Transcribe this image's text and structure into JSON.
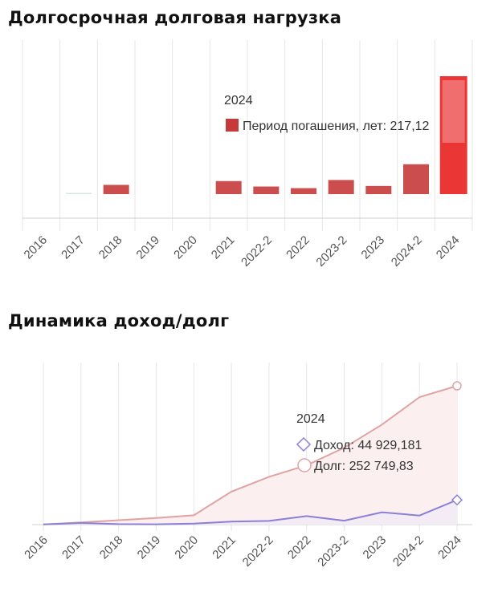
{
  "sections": {
    "debt_load_title": "Долгосрочная долговая нагрузка",
    "income_debt_title": "Динамика доход/долг"
  },
  "colors": {
    "bar": "#c73a3a",
    "bar_highlight": "#e8211f",
    "income_line": "#8b7fd6",
    "debt_line": "#e0a3a3",
    "debt_fill": "#fbeff0",
    "grid": "#e6e6e6"
  },
  "chart_data": [
    {
      "type": "bar",
      "categories": [
        "2016",
        "2017",
        "2018",
        "2019",
        "2020",
        "2021",
        "2022-2",
        "2022",
        "2023-2",
        "2023",
        "2024-2",
        "2024"
      ],
      "series": [
        {
          "name": "Период погашения, лет",
          "values": [
            0,
            0.3,
            17,
            0,
            0,
            24,
            14,
            11,
            26,
            15,
            55,
            217.12
          ]
        }
      ],
      "tooltip": {
        "category": "2024",
        "label": "Период погашения, лет: 217,12"
      },
      "grid": true
    },
    {
      "type": "area",
      "categories": [
        "2016",
        "2017",
        "2018",
        "2019",
        "2020",
        "2021",
        "2022-2",
        "2022",
        "2023-2",
        "2023",
        "2024-2",
        "2024"
      ],
      "series": [
        {
          "name": "Доход",
          "values": [
            400,
            3000,
            1000,
            600,
            1800,
            5500,
            6800,
            15500,
            7200,
            22500,
            16500,
            44929.181
          ]
        },
        {
          "name": "Долг",
          "values": [
            400,
            4000,
            8000,
            12000,
            17000,
            60000,
            87000,
            108000,
            140000,
            182000,
            232000,
            252749.83
          ]
        }
      ],
      "tooltip": {
        "category": "2024",
        "income_label": "Доход: 44 929,181",
        "debt_label": "Долг: 252 749,83"
      },
      "grid": true
    }
  ]
}
